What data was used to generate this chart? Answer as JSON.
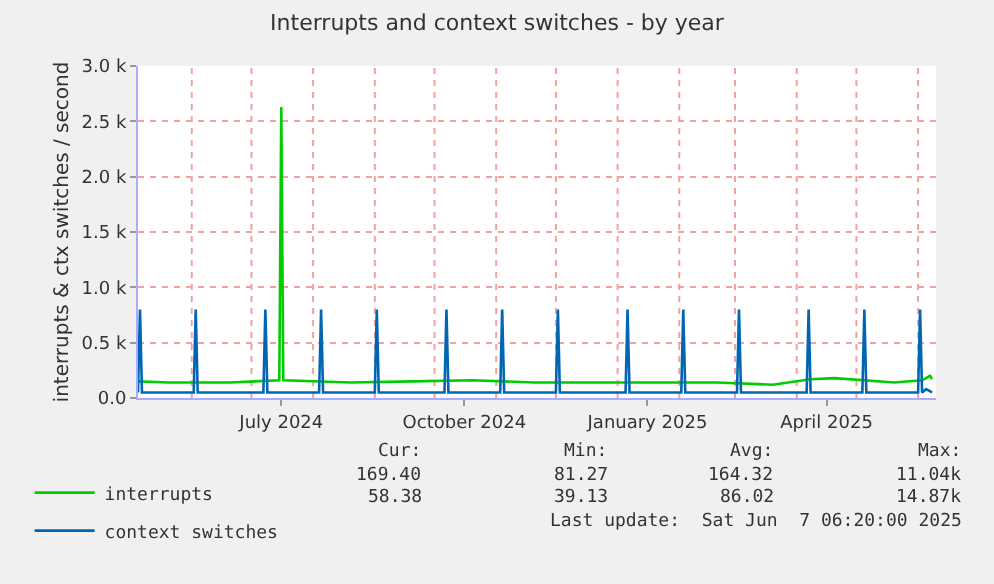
{
  "chart_data": {
    "type": "line",
    "title": "Interrupts and context switches - by year",
    "ylabel": "interrupts & ctx switches / second",
    "xlim": [
      "2024-05-05",
      "2025-06-10"
    ],
    "ylim": [
      0,
      3000
    ],
    "xticks": [
      {
        "value": "2024-06-01",
        "label": null
      },
      {
        "value": "2024-07-01",
        "label": null
      },
      {
        "value": "2024-07-16",
        "label": "July 2024"
      },
      {
        "value": "2024-08-01",
        "label": null
      },
      {
        "value": "2024-09-01",
        "label": null
      },
      {
        "value": "2024-10-01",
        "label": null
      },
      {
        "value": "2024-10-16",
        "label": "October 2024"
      },
      {
        "value": "2024-11-01",
        "label": null
      },
      {
        "value": "2024-12-01",
        "label": null
      },
      {
        "value": "2025-01-01",
        "label": null
      },
      {
        "value": "2025-01-16",
        "label": "January 2025"
      },
      {
        "value": "2025-02-01",
        "label": null
      },
      {
        "value": "2025-03-01",
        "label": null
      },
      {
        "value": "2025-04-01",
        "label": null
      },
      {
        "value": "2025-04-16",
        "label": "April 2025"
      },
      {
        "value": "2025-05-01",
        "label": null
      },
      {
        "value": "2025-06-01",
        "label": null
      }
    ],
    "yticks": [
      {
        "value": 0,
        "label": "0.0"
      },
      {
        "value": 500,
        "label": "0.5 k"
      },
      {
        "value": 1000,
        "label": "1.0 k"
      },
      {
        "value": 1500,
        "label": "1.5 k"
      },
      {
        "value": 2000,
        "label": "2.0 k"
      },
      {
        "value": 2500,
        "label": "2.5 k"
      },
      {
        "value": 3000,
        "label": "3.0 k"
      }
    ],
    "grid": true,
    "legend": "bottom left",
    "marker": "none",
    "line_style": "solid",
    "series": [
      {
        "name": "interrupts",
        "color": "#00cc00",
        "x": [
          "2024-05-05",
          "2024-05-20",
          "2024-06-20",
          "2024-07-15",
          "2024-07-16",
          "2024-07-17",
          "2024-08-20",
          "2024-09-20",
          "2024-10-20",
          "2024-11-20",
          "2024-12-20",
          "2025-01-20",
          "2025-02-20",
          "2025-03-20",
          "2025-04-08",
          "2025-04-20",
          "2025-05-20",
          "2025-06-03",
          "2025-06-07",
          "2025-06-08"
        ],
        "values": [
          150,
          140,
          140,
          160,
          2630,
          160,
          140,
          150,
          160,
          140,
          140,
          140,
          140,
          120,
          170,
          180,
          140,
          160,
          200,
          170
        ]
      },
      {
        "name": "context switches",
        "color": "#0066b3",
        "x": [
          "2024-05-05",
          "2024-05-06",
          "2024-05-07",
          "2024-06-02",
          "2024-06-03",
          "2024-06-04",
          "2024-07-07",
          "2024-07-08",
          "2024-07-09",
          "2024-08-04",
          "2024-08-05",
          "2024-08-06",
          "2024-09-01",
          "2024-09-02",
          "2024-09-03",
          "2024-10-06",
          "2024-10-07",
          "2024-10-08",
          "2024-11-03",
          "2024-11-04",
          "2024-11-05",
          "2024-12-01",
          "2024-12-02",
          "2024-12-03",
          "2025-01-05",
          "2025-01-06",
          "2025-01-07",
          "2025-02-02",
          "2025-02-03",
          "2025-02-04",
          "2025-03-02",
          "2025-03-03",
          "2025-03-04",
          "2025-04-06",
          "2025-04-07",
          "2025-04-08",
          "2025-05-04",
          "2025-05-05",
          "2025-05-06",
          "2025-06-01",
          "2025-06-02",
          "2025-06-03",
          "2025-06-05",
          "2025-06-08"
        ],
        "values": [
          50,
          800,
          50,
          50,
          800,
          50,
          50,
          800,
          50,
          50,
          800,
          50,
          50,
          800,
          50,
          50,
          800,
          50,
          50,
          800,
          50,
          50,
          800,
          50,
          50,
          800,
          50,
          50,
          800,
          50,
          50,
          800,
          50,
          50,
          800,
          50,
          50,
          800,
          50,
          50,
          800,
          50,
          80,
          50
        ]
      }
    ],
    "annotations": [
      "Cur:",
      "Min:",
      "Avg:",
      "Max:",
      "169.40",
      "81.27",
      "164.32",
      "11.04k",
      "58.38",
      "39.13",
      "86.02",
      "14.87k",
      "Last update:  Sat Jun  7 06:20:00 2025"
    ]
  }
}
